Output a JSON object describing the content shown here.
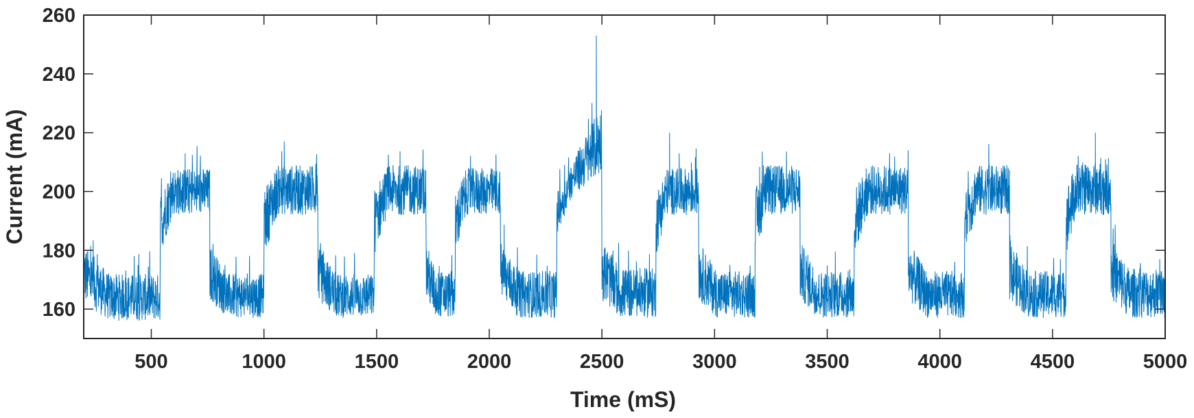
{
  "chart_data": {
    "type": "line",
    "title": "",
    "xlabel": "Time (mS)",
    "ylabel": "Current (mA)",
    "xlim": [
      200,
      5000
    ],
    "ylim": [
      150,
      260
    ],
    "x_ticks": [
      500,
      1000,
      1500,
      2000,
      2500,
      3000,
      3500,
      4000,
      4500,
      5000
    ],
    "y_ticks": [
      160,
      180,
      200,
      220,
      240,
      260
    ],
    "grid": false,
    "line_color": "#0072BD",
    "series": [
      {
        "name": "",
        "segments": [
          {
            "x_start": 200,
            "x_end": 540,
            "level": "low",
            "min": 156,
            "max": 172
          },
          {
            "x_start": 540,
            "x_end": 760,
            "level": "high",
            "min": 193,
            "max": 208
          },
          {
            "x_start": 760,
            "x_end": 1000,
            "level": "low",
            "min": 157,
            "max": 172
          },
          {
            "x_start": 1000,
            "x_end": 1240,
            "level": "high",
            "min": 193,
            "max": 209
          },
          {
            "x_start": 1240,
            "x_end": 1490,
            "level": "low",
            "min": 157,
            "max": 172
          },
          {
            "x_start": 1490,
            "x_end": 1720,
            "level": "high",
            "min": 194,
            "max": 209
          },
          {
            "x_start": 1720,
            "x_end": 1850,
            "level": "low",
            "min": 157,
            "max": 173
          },
          {
            "x_start": 1850,
            "x_end": 2050,
            "level": "high",
            "min": 193,
            "max": 208
          },
          {
            "x_start": 2050,
            "x_end": 2300,
            "level": "low",
            "min": 157,
            "max": 173
          },
          {
            "x_start": 2300,
            "x_end": 2500,
            "level": "high-ramp",
            "min": 194,
            "max": 230
          },
          {
            "x_start": 2500,
            "x_end": 2740,
            "level": "low",
            "min": 157,
            "max": 174
          },
          {
            "x_start": 2740,
            "x_end": 2930,
            "level": "high",
            "min": 194,
            "max": 208
          },
          {
            "x_start": 2930,
            "x_end": 3180,
            "level": "low",
            "min": 157,
            "max": 173
          },
          {
            "x_start": 3180,
            "x_end": 3380,
            "level": "high",
            "min": 194,
            "max": 209
          },
          {
            "x_start": 3380,
            "x_end": 3620,
            "level": "low",
            "min": 157,
            "max": 173
          },
          {
            "x_start": 3620,
            "x_end": 3860,
            "level": "high",
            "min": 194,
            "max": 209
          },
          {
            "x_start": 3860,
            "x_end": 4110,
            "level": "low",
            "min": 157,
            "max": 173
          },
          {
            "x_start": 4110,
            "x_end": 4310,
            "level": "high",
            "min": 194,
            "max": 209
          },
          {
            "x_start": 4310,
            "x_end": 4560,
            "level": "low",
            "min": 157,
            "max": 173
          },
          {
            "x_start": 4560,
            "x_end": 4760,
            "level": "high",
            "min": 194,
            "max": 210
          },
          {
            "x_start": 4760,
            "x_end": 5000,
            "level": "low",
            "min": 157,
            "max": 174
          }
        ],
        "peaks": [
          {
            "x": 2475,
            "y": 253
          },
          {
            "x": 1090,
            "y": 217
          },
          {
            "x": 2800,
            "y": 220
          },
          {
            "x": 4690,
            "y": 220
          },
          {
            "x": 650,
            "y": 213
          }
        ]
      }
    ]
  }
}
